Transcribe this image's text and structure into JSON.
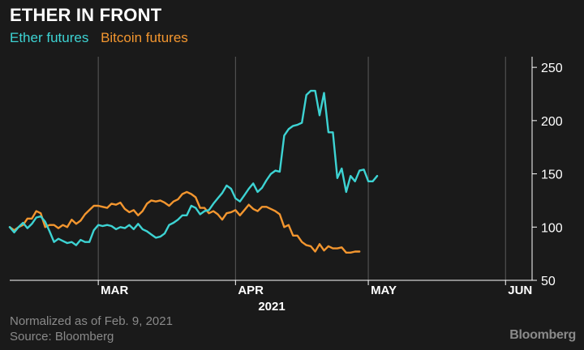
{
  "header": {
    "title": "ETHER IN FRONT"
  },
  "footer": {
    "note": "Normalized as of Feb. 9, 2021",
    "source": "Source: Bloomberg",
    "brand": "Bloomberg"
  },
  "colors": {
    "background": "#1a1a1a",
    "ether": "#3dd3d3",
    "bitcoin": "#f3962f",
    "axis": "#ffffff",
    "grid": "#5a5a5a",
    "muted": "#8a8a8a"
  },
  "chart_data": {
    "type": "line",
    "title": "ETHER IN FRONT",
    "xlabel": "2021",
    "ylabel": "",
    "ylim": [
      50,
      260
    ],
    "y_ticks": [
      50,
      100,
      150,
      200,
      250
    ],
    "x_range": [
      "2021-02-09",
      "2021-06-07"
    ],
    "x_ticks": [
      {
        "label": "MAR",
        "date": "2021-03-01"
      },
      {
        "label": "APR",
        "date": "2021-04-01"
      },
      {
        "label": "MAY",
        "date": "2021-05-01"
      },
      {
        "label": "JUN",
        "date": "2021-06-01"
      }
    ],
    "year_label": "2021",
    "grid": "vertical lines at month boundaries",
    "legend_position": "top-left",
    "series": [
      {
        "name": "Ether futures",
        "color": "#3dd3d3",
        "points": [
          [
            "2021-02-09",
            100
          ],
          [
            "2021-02-10",
            95
          ],
          [
            "2021-02-11",
            100
          ],
          [
            "2021-02-12",
            104
          ],
          [
            "2021-02-13",
            99
          ],
          [
            "2021-02-14",
            103
          ],
          [
            "2021-02-15",
            109
          ],
          [
            "2021-02-16",
            110
          ],
          [
            "2021-02-17",
            105
          ],
          [
            "2021-02-18",
            96
          ],
          [
            "2021-02-19",
            86
          ],
          [
            "2021-02-20",
            89
          ],
          [
            "2021-02-21",
            87
          ],
          [
            "2021-02-22",
            85
          ],
          [
            "2021-02-23",
            86
          ],
          [
            "2021-02-24",
            83
          ],
          [
            "2021-02-25",
            88
          ],
          [
            "2021-02-26",
            86
          ],
          [
            "2021-02-27",
            86
          ],
          [
            "2021-02-28",
            97
          ],
          [
            "2021-03-01",
            102
          ],
          [
            "2021-03-02",
            101
          ],
          [
            "2021-03-03",
            102
          ],
          [
            "2021-03-04",
            101
          ],
          [
            "2021-03-05",
            98
          ],
          [
            "2021-03-06",
            100
          ],
          [
            "2021-03-07",
            99
          ],
          [
            "2021-03-08",
            102
          ],
          [
            "2021-03-09",
            98
          ],
          [
            "2021-03-10",
            103
          ],
          [
            "2021-03-11",
            98
          ],
          [
            "2021-03-12",
            96
          ],
          [
            "2021-03-13",
            93
          ],
          [
            "2021-03-14",
            90
          ],
          [
            "2021-03-15",
            91
          ],
          [
            "2021-03-16",
            94
          ],
          [
            "2021-03-17",
            102
          ],
          [
            "2021-03-18",
            104
          ],
          [
            "2021-03-19",
            107
          ],
          [
            "2021-03-20",
            111
          ],
          [
            "2021-03-21",
            111
          ],
          [
            "2021-03-22",
            120
          ],
          [
            "2021-03-23",
            118
          ],
          [
            "2021-03-24",
            112
          ],
          [
            "2021-03-25",
            115
          ],
          [
            "2021-03-26",
            116
          ],
          [
            "2021-03-27",
            122
          ],
          [
            "2021-03-28",
            127
          ],
          [
            "2021-03-29",
            132
          ],
          [
            "2021-03-30",
            139
          ],
          [
            "2021-03-31",
            136
          ],
          [
            "2021-04-01",
            127
          ],
          [
            "2021-04-02",
            124
          ],
          [
            "2021-04-03",
            130
          ],
          [
            "2021-04-04",
            136
          ],
          [
            "2021-04-05",
            141
          ],
          [
            "2021-04-06",
            133
          ],
          [
            "2021-04-07",
            137
          ],
          [
            "2021-04-08",
            144
          ],
          [
            "2021-04-09",
            150
          ],
          [
            "2021-04-10",
            153
          ],
          [
            "2021-04-11",
            152
          ],
          [
            "2021-04-12",
            186
          ],
          [
            "2021-04-13",
            192
          ],
          [
            "2021-04-14",
            195
          ],
          [
            "2021-04-15",
            196
          ],
          [
            "2021-04-16",
            198
          ],
          [
            "2021-04-17",
            224
          ],
          [
            "2021-04-18",
            228
          ],
          [
            "2021-04-19",
            228
          ],
          [
            "2021-04-20",
            205
          ],
          [
            "2021-04-21",
            226
          ],
          [
            "2021-04-22",
            189
          ],
          [
            "2021-04-23",
            189
          ],
          [
            "2021-04-24",
            146
          ],
          [
            "2021-04-25",
            155
          ],
          [
            "2021-04-26",
            133
          ],
          [
            "2021-04-27",
            148
          ],
          [
            "2021-04-28",
            143
          ],
          [
            "2021-04-29",
            153
          ],
          [
            "2021-04-30",
            154
          ],
          [
            "2021-05-01",
            143
          ],
          [
            "2021-05-02",
            143
          ],
          [
            "2021-05-03",
            148
          ]
        ]
      },
      {
        "name": "Bitcoin futures",
        "color": "#f3962f",
        "points": [
          [
            "2021-02-09",
            100
          ],
          [
            "2021-02-10",
            97
          ],
          [
            "2021-02-11",
            100
          ],
          [
            "2021-02-12",
            102
          ],
          [
            "2021-02-13",
            108
          ],
          [
            "2021-02-14",
            108
          ],
          [
            "2021-02-15",
            115
          ],
          [
            "2021-02-16",
            113
          ],
          [
            "2021-02-17",
            100
          ],
          [
            "2021-02-18",
            102
          ],
          [
            "2021-02-19",
            102
          ],
          [
            "2021-02-20",
            99
          ],
          [
            "2021-02-21",
            102
          ],
          [
            "2021-02-22",
            100
          ],
          [
            "2021-02-23",
            107
          ],
          [
            "2021-02-24",
            103
          ],
          [
            "2021-02-25",
            106
          ],
          [
            "2021-02-26",
            112
          ],
          [
            "2021-02-27",
            116
          ],
          [
            "2021-02-28",
            120
          ],
          [
            "2021-03-01",
            120
          ],
          [
            "2021-03-02",
            119
          ],
          [
            "2021-03-03",
            118
          ],
          [
            "2021-03-04",
            122
          ],
          [
            "2021-03-05",
            121
          ],
          [
            "2021-03-06",
            123
          ],
          [
            "2021-03-07",
            117
          ],
          [
            "2021-03-08",
            114
          ],
          [
            "2021-03-09",
            116
          ],
          [
            "2021-03-10",
            111
          ],
          [
            "2021-03-11",
            115
          ],
          [
            "2021-03-12",
            122
          ],
          [
            "2021-03-13",
            125
          ],
          [
            "2021-03-14",
            124
          ],
          [
            "2021-03-15",
            125
          ],
          [
            "2021-03-16",
            123
          ],
          [
            "2021-03-17",
            120
          ],
          [
            "2021-03-18",
            124
          ],
          [
            "2021-03-19",
            126
          ],
          [
            "2021-03-20",
            131
          ],
          [
            "2021-03-21",
            133
          ],
          [
            "2021-03-22",
            131
          ],
          [
            "2021-03-23",
            128
          ],
          [
            "2021-03-24",
            118
          ],
          [
            "2021-03-25",
            118
          ],
          [
            "2021-03-26",
            113
          ],
          [
            "2021-03-27",
            115
          ],
          [
            "2021-03-28",
            112
          ],
          [
            "2021-03-29",
            107
          ],
          [
            "2021-03-30",
            113
          ],
          [
            "2021-03-31",
            114
          ],
          [
            "2021-04-01",
            116
          ],
          [
            "2021-04-02",
            111
          ],
          [
            "2021-04-03",
            116
          ],
          [
            "2021-04-04",
            121
          ],
          [
            "2021-04-05",
            117
          ],
          [
            "2021-04-06",
            115
          ],
          [
            "2021-04-07",
            119
          ],
          [
            "2021-04-08",
            119
          ],
          [
            "2021-04-09",
            117
          ],
          [
            "2021-04-10",
            115
          ],
          [
            "2021-04-11",
            112
          ],
          [
            "2021-04-12",
            100
          ],
          [
            "2021-04-13",
            102
          ],
          [
            "2021-04-14",
            92
          ],
          [
            "2021-04-15",
            92
          ],
          [
            "2021-04-16",
            86
          ],
          [
            "2021-04-17",
            83
          ],
          [
            "2021-04-18",
            82
          ],
          [
            "2021-04-19",
            77
          ],
          [
            "2021-04-20",
            84
          ],
          [
            "2021-04-21",
            78
          ],
          [
            "2021-04-22",
            82
          ],
          [
            "2021-04-23",
            80
          ],
          [
            "2021-04-24",
            80
          ],
          [
            "2021-04-25",
            81
          ],
          [
            "2021-04-26",
            76
          ],
          [
            "2021-04-27",
            76
          ],
          [
            "2021-04-28",
            77
          ],
          [
            "2021-04-29",
            77
          ]
        ]
      }
    ]
  }
}
